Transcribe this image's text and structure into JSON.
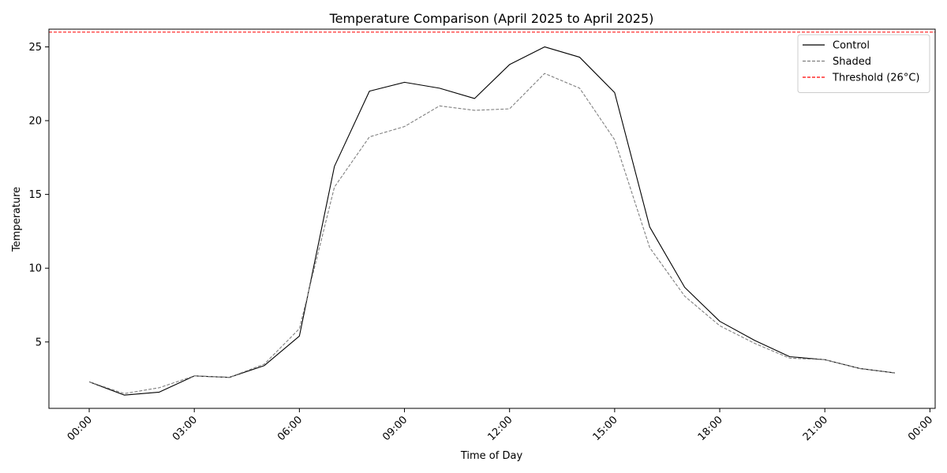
{
  "chart_data": {
    "type": "line",
    "title": "Temperature Comparison (April 2025 to April 2025)",
    "xlabel": "Time of Day",
    "ylabel": "Temperature",
    "x": [
      "00:00",
      "01:00",
      "02:00",
      "03:00",
      "04:00",
      "05:00",
      "06:00",
      "07:00",
      "08:00",
      "09:00",
      "10:00",
      "11:00",
      "12:00",
      "13:00",
      "14:00",
      "15:00",
      "16:00",
      "17:00",
      "18:00",
      "19:00",
      "20:00",
      "21:00",
      "22:00",
      "23:00"
    ],
    "x_ticks": [
      "00:00",
      "03:00",
      "06:00",
      "09:00",
      "12:00",
      "15:00",
      "18:00",
      "21:00",
      "00:00"
    ],
    "x_tick_hours": [
      0,
      3,
      6,
      9,
      12,
      15,
      18,
      21,
      24
    ],
    "y_ticks": [
      5,
      10,
      15,
      20,
      25
    ],
    "ylim": [
      0.5,
      26.2
    ],
    "xlim": [
      -1.15,
      24.15
    ],
    "grid": false,
    "legend_position": "top-right",
    "series": [
      {
        "name": "Control",
        "color": "#000000",
        "style": "solid",
        "values": [
          2.3,
          1.4,
          1.6,
          2.7,
          2.6,
          3.4,
          5.4,
          16.9,
          22.0,
          22.6,
          22.2,
          21.5,
          23.8,
          25.0,
          24.3,
          21.9,
          12.8,
          8.7,
          6.4,
          5.1,
          4.0,
          3.8,
          3.2,
          2.9
        ]
      },
      {
        "name": "Shaded",
        "color": "#808080",
        "style": "dashed",
        "values": [
          2.3,
          1.5,
          1.9,
          2.7,
          2.6,
          3.5,
          5.9,
          15.5,
          18.9,
          19.6,
          21.0,
          20.7,
          20.8,
          23.2,
          22.2,
          18.7,
          11.4,
          8.1,
          6.1,
          4.9,
          3.9,
          3.8,
          3.2,
          2.9
        ]
      }
    ],
    "reference_lines": [
      {
        "name": "Threshold (26°C)",
        "value": 26,
        "color": "#ff0000",
        "style": "dashed"
      }
    ]
  }
}
